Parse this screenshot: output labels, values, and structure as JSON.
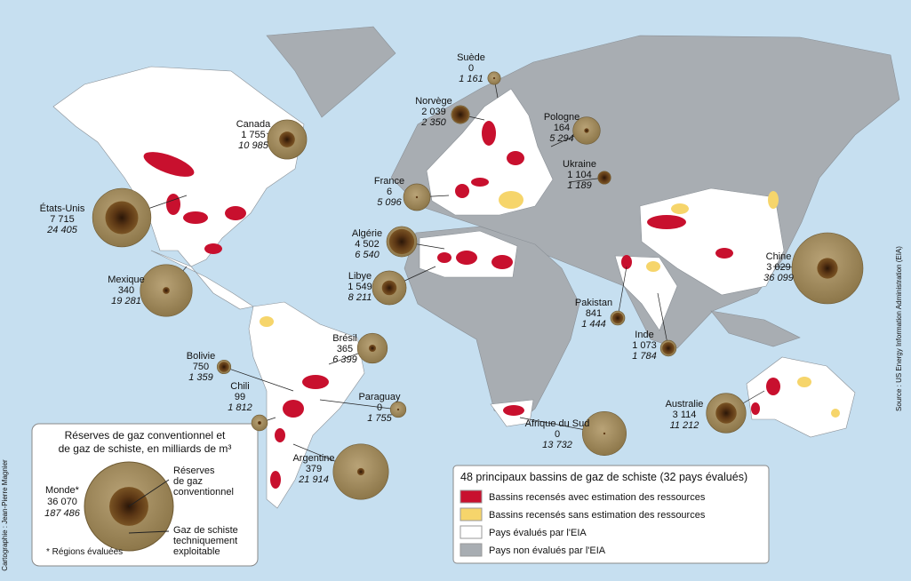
{
  "legend_reserves": {
    "title_line1": "Réserves de gaz conventionnel et",
    "title_line2": "de gaz de schiste, en milliards de m³",
    "world": {
      "name": "Monde*",
      "conventional": {
        "value": 36070,
        "label": "36 070"
      },
      "shale": {
        "value": 187486,
        "label": "187 486"
      }
    },
    "conventional_label": [
      "Réserves",
      "de gaz",
      "conventionnel"
    ],
    "shale_label": [
      "Gaz de schiste",
      "techniquement",
      "exploitable"
    ],
    "footnote": "* Régions évaluées"
  },
  "legend_basins": {
    "title": "48 principaux bassins de gaz de schiste (32 pays évalués)",
    "items": [
      {
        "label": "Bassins recensés avec estimation des ressources",
        "color": "#c8102e"
      },
      {
        "label": "Bassins recensés sans estimation des ressources",
        "color": "#f6d56b"
      },
      {
        "label": "Pays évalués par l'EIA",
        "color": "#ffffff"
      },
      {
        "label": "Pays non évalués par l'EIA",
        "color": "#a8adb2"
      }
    ]
  },
  "source": "Source : US Energy Information Administration (EIA)",
  "credit": "Cartographie : Jean-Pierre Magnier",
  "countries": [
    {
      "name": "Suède",
      "conventional": 0,
      "shale": {
        "value": 1161,
        "label": "1 161"
      }
    },
    {
      "name": "Norvège",
      "conventional": {
        "value": 2039,
        "label": "2 039"
      },
      "shale": {
        "value": 2350,
        "label": "2 350"
      }
    },
    {
      "name": "Pologne",
      "conventional": 164,
      "shale": {
        "value": 5294,
        "label": "5 294"
      }
    },
    {
      "name": "Canada",
      "conventional": {
        "value": 1755,
        "label": "1 755"
      },
      "shale": {
        "value": 10985,
        "label": "10 985"
      }
    },
    {
      "name": "Ukraine",
      "conventional": {
        "value": 1104,
        "label": "1 104"
      },
      "shale": {
        "value": 1189,
        "label": "1 189"
      }
    },
    {
      "name": "France",
      "conventional": 6,
      "shale": {
        "value": 5096,
        "label": "5 096"
      }
    },
    {
      "name": "États-Unis",
      "conventional": {
        "value": 7715,
        "label": "7 715"
      },
      "shale": {
        "value": 24405,
        "label": "24 405"
      }
    },
    {
      "name": "Algérie",
      "conventional": {
        "value": 4502,
        "label": "4 502"
      },
      "shale": {
        "value": 6540,
        "label": "6 540"
      }
    },
    {
      "name": "Chine",
      "conventional": {
        "value": 3029,
        "label": "3 029"
      },
      "shale": {
        "value": 36099,
        "label": "36 099"
      }
    },
    {
      "name": "Libye",
      "conventional": {
        "value": 1549,
        "label": "1 549"
      },
      "shale": {
        "value": 8211,
        "label": "8 211"
      }
    },
    {
      "name": "Mexique",
      "conventional": 340,
      "shale": {
        "value": 19281,
        "label": "19 281"
      }
    },
    {
      "name": "Pakistan",
      "conventional": 841,
      "shale": {
        "value": 1444,
        "label": "1 444"
      }
    },
    {
      "name": "Brésil",
      "conventional": 365,
      "shale": {
        "value": 6399,
        "label": "6 399"
      }
    },
    {
      "name": "Inde",
      "conventional": {
        "value": 1073,
        "label": "1 073"
      },
      "shale": {
        "value": 1784,
        "label": "1 784"
      }
    },
    {
      "name": "Bolivie",
      "conventional": 750,
      "shale": {
        "value": 1359,
        "label": "1 359"
      }
    },
    {
      "name": "Chili",
      "conventional": 99,
      "shale": {
        "value": 1812,
        "label": "1 812"
      }
    },
    {
      "name": "Paraguay",
      "conventional": 0,
      "shale": {
        "value": 1755,
        "label": "1 755"
      }
    },
    {
      "name": "Australie",
      "conventional": {
        "value": 3114,
        "label": "3 114"
      },
      "shale": {
        "value": 11212,
        "label": "11 212"
      }
    },
    {
      "name": "Afrique du Sud",
      "conventional": 0,
      "shale": {
        "value": 13732,
        "label": "13 732"
      }
    },
    {
      "name": "Argentine",
      "conventional": 379,
      "shale": {
        "value": 21914,
        "label": "21 914"
      }
    }
  ]
}
